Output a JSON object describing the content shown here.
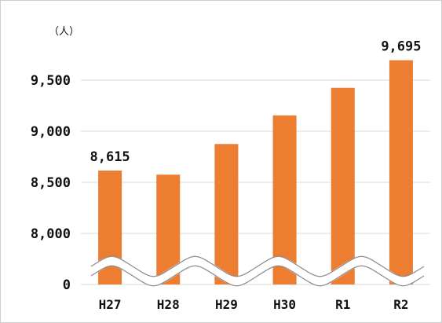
{
  "chart_data": {
    "type": "bar",
    "unit_label": "（人）",
    "categories": [
      "H27",
      "H28",
      "H29",
      "H30",
      "R1",
      "R2"
    ],
    "values": [
      8615,
      8575,
      8875,
      9155,
      9425,
      9695
    ],
    "data_labels": [
      {
        "index": 0,
        "text": "8,615"
      },
      {
        "index": 5,
        "text": "9,695"
      }
    ],
    "y_ticks": [
      {
        "value": 9500,
        "label": "9,500"
      },
      {
        "value": 9000,
        "label": "9,000"
      },
      {
        "value": 8500,
        "label": "8,500"
      },
      {
        "value": 8000,
        "label": "8,000"
      },
      {
        "value": 0,
        "label": "0"
      }
    ],
    "axis_break": true,
    "grid": true,
    "bar_color": "#ED7D31",
    "grid_color": "#D9D9D9"
  }
}
